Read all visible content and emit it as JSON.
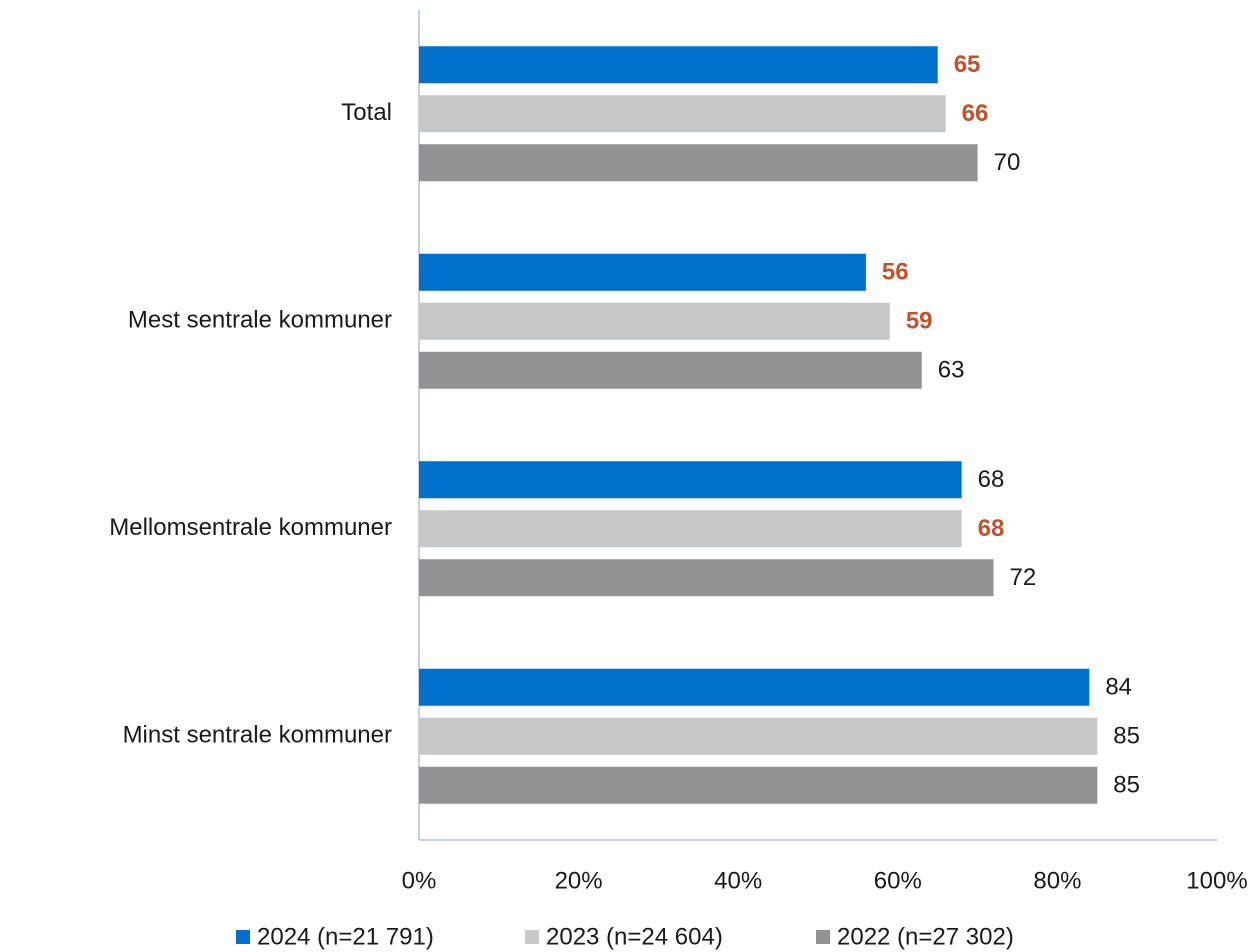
{
  "chart_data": {
    "type": "hbar",
    "categories": [
      "Total",
      "Mest sentrale kommuner",
      "Mellomsentrale kommuner",
      "Minst sentrale kommuner"
    ],
    "series": [
      {
        "name": "2024 (n=21 791)",
        "color": "#0070cc",
        "values": [
          65,
          56,
          68,
          84
        ],
        "highlight": [
          true,
          true,
          false,
          false
        ]
      },
      {
        "name": "2023 (n=24 604)",
        "color": "#c6c7c9",
        "values": [
          66,
          59,
          68,
          85
        ],
        "highlight": [
          true,
          true,
          true,
          false
        ]
      },
      {
        "name": "2022 (n=27 302)",
        "color": "#939393",
        "values": [
          70,
          63,
          72,
          85
        ],
        "highlight": [
          false,
          false,
          false,
          false
        ]
      }
    ],
    "highlight_color": "#c5502a",
    "xlim": [
      0,
      100
    ],
    "xticks": [
      {
        "value": 0,
        "label": "0%"
      },
      {
        "value": 20,
        "label": "20%"
      },
      {
        "value": 40,
        "label": "40%"
      },
      {
        "value": 60,
        "label": "60%"
      },
      {
        "value": 80,
        "label": "80%"
      },
      {
        "value": 100,
        "label": "100%"
      }
    ],
    "grid": false,
    "legend": "bottom"
  }
}
